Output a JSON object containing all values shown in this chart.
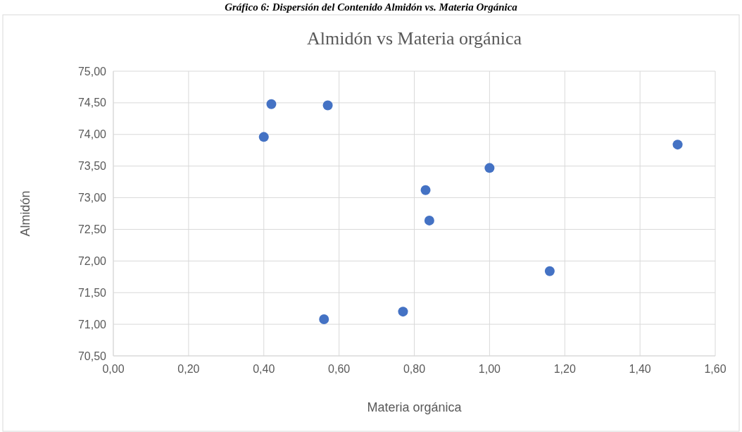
{
  "chart_data": {
    "type": "scatter",
    "title": "Almidón vs Materia orgánica",
    "xlabel": "Materia orgánica",
    "ylabel": "Almidón",
    "annotations": [
      "Gráfico 6: Dispersión del Contenido Almidón vs. Materia Orgánica"
    ],
    "series": [
      {
        "color": "#4472c4",
        "x": [
          0.42,
          0.57,
          0.4,
          1.5,
          1.0,
          0.83,
          0.84,
          1.16,
          0.77,
          0.56
        ],
        "values": [
          74.48,
          74.46,
          73.96,
          73.84,
          73.47,
          73.12,
          72.64,
          71.84,
          71.2,
          71.08
        ]
      }
    ],
    "xlim": [
      0,
      1.6
    ],
    "ylim": [
      70.5,
      75
    ],
    "xticks": [
      {
        "value": 0,
        "label": "0,00"
      },
      {
        "value": 0.2,
        "label": "0,20"
      },
      {
        "value": 0.4,
        "label": "0,40"
      },
      {
        "value": 0.6,
        "label": "0,60"
      },
      {
        "value": 0.8,
        "label": "0,80"
      },
      {
        "value": 1,
        "label": "1,00"
      },
      {
        "value": 1.2,
        "label": "1,20"
      },
      {
        "value": 1.4,
        "label": "1,40"
      },
      {
        "value": 1.6,
        "label": "1,60"
      }
    ],
    "yticks": [
      {
        "value": 70.5,
        "label": "70,50"
      },
      {
        "value": 71,
        "label": "71,00"
      },
      {
        "value": 71.5,
        "label": "71,50"
      },
      {
        "value": 72,
        "label": "72,00"
      },
      {
        "value": 72.5,
        "label": "72,50"
      },
      {
        "value": 73,
        "label": "73,00"
      },
      {
        "value": 73.5,
        "label": "73,50"
      },
      {
        "value": 74,
        "label": "74,00"
      },
      {
        "value": 74.5,
        "label": "74,50"
      },
      {
        "value": 75,
        "label": "75,00"
      }
    ],
    "grid": true,
    "marker": "circle"
  }
}
